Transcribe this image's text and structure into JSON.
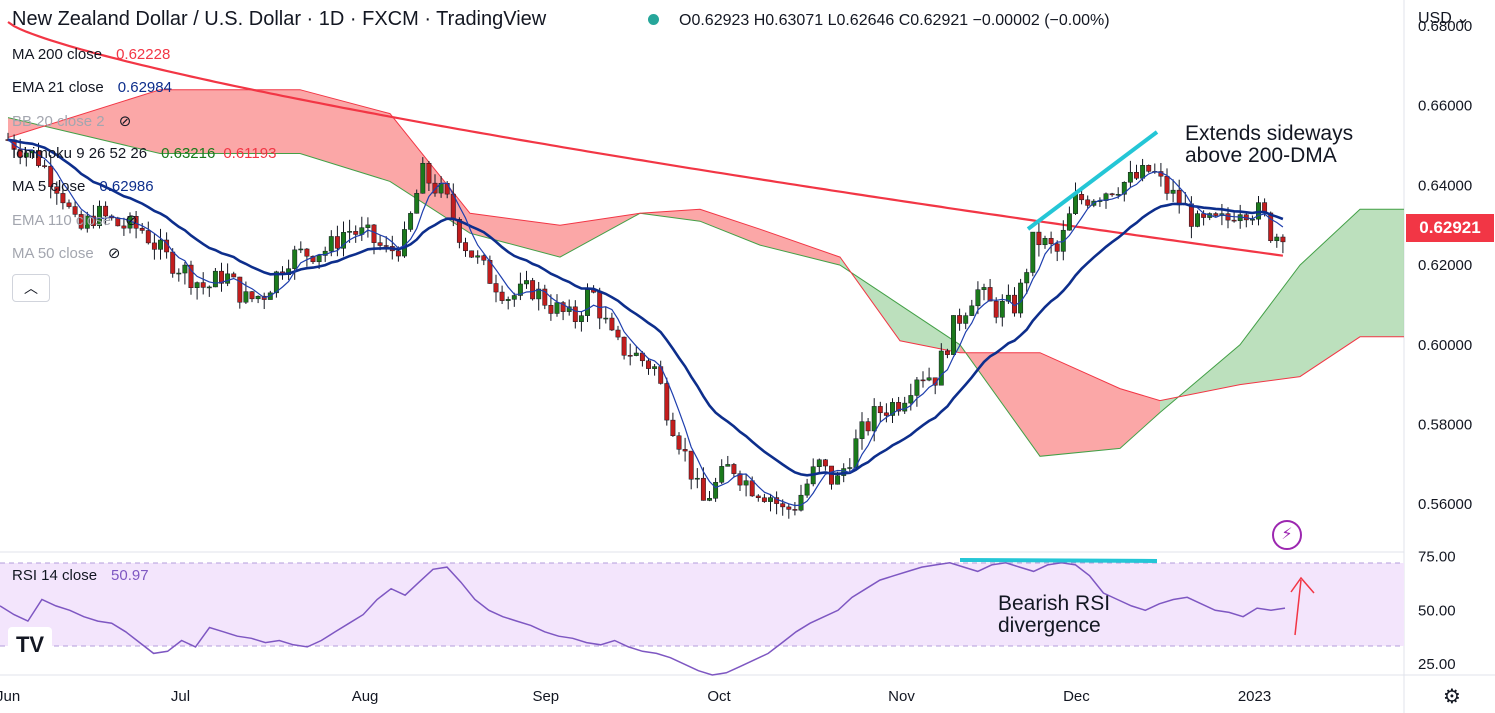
{
  "header": {
    "title": "New Zealand Dollar / U.S. Dollar · 1D · FXCM · TradingView",
    "ohlc": "O0.62923 H0.63071 L0.62646 C0.62921 −0.00002 (−0.00%)",
    "currency": "USD"
  },
  "legend": [
    {
      "label": "MA 200 close",
      "value": "0.62228",
      "color": "#f23645",
      "visible": true
    },
    {
      "label": "EMA 21 close",
      "value": "0.62984",
      "color": "#0d2e8c",
      "visible": true
    },
    {
      "label": "BB 20 close 2",
      "value": "",
      "color": "#a3a6af",
      "visible": false
    },
    {
      "label": "Ichimoku 9 26 52 26",
      "value": "0.63216",
      "value2": "0.61193",
      "color": "#1b7a1b",
      "color2": "#f23645",
      "visible": true
    },
    {
      "label": "MA 5 close",
      "value": "0.62986",
      "color": "#0d2e8c",
      "visible": true
    },
    {
      "label": "EMA 110 close",
      "value": "",
      "color": "#a3a6af",
      "visible": false
    },
    {
      "label": "MA 50 close",
      "value": "",
      "color": "#a3a6af",
      "visible": false
    }
  ],
  "rsi_legend": {
    "label": "RSI 14 close",
    "value": "50.97",
    "color": "#7e57c2"
  },
  "last_price": "0.62921",
  "annotations": {
    "top_note": [
      "Extends sideways",
      "above 200-DMA"
    ],
    "rsi_note": [
      "Bearish RSI",
      "divergence"
    ]
  },
  "icons": {
    "collapse": "chevron-up-icon",
    "logo": "tradingview-logo-icon",
    "alert": "lightning-icon",
    "settings": "gear-icon",
    "hidden": "eye-off-icon"
  },
  "chart_data": [
    {
      "type": "candlestick",
      "title": "New Zealand Dollar / U.S. Dollar · 1D · FXCM",
      "y_ticks": [
        "0.68000",
        "0.66000",
        "0.64000",
        "0.62000",
        "0.60000",
        "0.58000",
        "0.56000"
      ],
      "x_ticks": [
        "Jun",
        "Jul",
        "Aug",
        "Sep",
        "Oct",
        "Nov",
        "Dec",
        "2023"
      ],
      "ylim": [
        0.549,
        0.682
      ],
      "x_range": [
        "2022-06-01",
        "2023-01-06"
      ],
      "close_series": [
        [
          "2022-06-01",
          0.6515
        ],
        [
          "2022-06-06",
          0.647
        ],
        [
          "2022-06-10",
          0.639
        ],
        [
          "2022-06-13",
          0.628
        ],
        [
          "2022-06-16",
          0.633
        ],
        [
          "2022-06-20",
          0.63
        ],
        [
          "2022-06-24",
          0.629
        ],
        [
          "2022-06-28",
          0.622
        ],
        [
          "2022-07-01",
          0.619
        ],
        [
          "2022-07-05",
          0.614
        ],
        [
          "2022-07-08",
          0.618
        ],
        [
          "2022-07-12",
          0.611
        ],
        [
          "2022-07-15",
          0.613
        ],
        [
          "2022-07-19",
          0.622
        ],
        [
          "2022-07-22",
          0.623
        ],
        [
          "2022-07-26",
          0.624
        ],
        [
          "2022-07-29",
          0.629
        ],
        [
          "2022-08-02",
          0.627
        ],
        [
          "2022-08-05",
          0.623
        ],
        [
          "2022-08-08",
          0.626
        ],
        [
          "2022-08-11",
          0.643
        ],
        [
          "2022-08-15",
          0.637
        ],
        [
          "2022-08-18",
          0.626
        ],
        [
          "2022-08-22",
          0.618
        ],
        [
          "2022-08-26",
          0.612
        ],
        [
          "2022-08-30",
          0.614
        ],
        [
          "2022-09-02",
          0.61
        ],
        [
          "2022-09-06",
          0.606
        ],
        [
          "2022-09-09",
          0.614
        ],
        [
          "2022-09-13",
          0.6
        ],
        [
          "2022-09-16",
          0.598
        ],
        [
          "2022-09-20",
          0.594
        ],
        [
          "2022-09-22",
          0.584
        ],
        [
          "2022-09-26",
          0.569
        ],
        [
          "2022-09-28",
          0.56
        ],
        [
          "2022-10-03",
          0.57
        ],
        [
          "2022-10-06",
          0.565
        ],
        [
          "2022-10-10",
          0.562
        ],
        [
          "2022-10-12",
          0.558
        ],
        [
          "2022-10-14",
          0.56
        ],
        [
          "2022-10-18",
          0.57
        ],
        [
          "2022-10-21",
          0.565
        ],
        [
          "2022-10-25",
          0.577
        ],
        [
          "2022-10-28",
          0.583
        ],
        [
          "2022-11-01",
          0.586
        ],
        [
          "2022-11-04",
          0.593
        ],
        [
          "2022-11-07",
          0.592
        ],
        [
          "2022-11-10",
          0.604
        ],
        [
          "2022-11-14",
          0.614
        ],
        [
          "2022-11-17",
          0.609
        ],
        [
          "2022-11-21",
          0.61
        ],
        [
          "2022-11-24",
          0.627
        ],
        [
          "2022-11-28",
          0.623
        ],
        [
          "2022-12-01",
          0.636
        ],
        [
          "2022-12-05",
          0.638
        ],
        [
          "2022-12-08",
          0.64
        ],
        [
          "2022-12-12",
          0.642
        ],
        [
          "2022-12-14",
          0.644
        ],
        [
          "2022-12-16",
          0.64
        ],
        [
          "2022-12-20",
          0.634
        ],
        [
          "2022-12-22",
          0.63
        ],
        [
          "2022-12-27",
          0.631
        ],
        [
          "2022-12-29",
          0.635
        ],
        [
          "2023-01-02",
          0.633
        ],
        [
          "2023-01-04",
          0.627
        ],
        [
          "2023-01-06",
          0.6292
        ]
      ],
      "series": [
        {
          "name": "MA 200 close",
          "last": 0.62228
        },
        {
          "name": "EMA 21 close",
          "last": 0.62984
        },
        {
          "name": "Ichimoku 9 26 52 26",
          "last": [
            0.63216,
            0.61193
          ]
        },
        {
          "name": "MA 5 close",
          "last": 0.62986
        }
      ]
    },
    {
      "type": "line",
      "title": "RSI 14 close",
      "y_ticks": [
        "75.00",
        "50.00",
        "25.00"
      ],
      "ylim": [
        20,
        77
      ],
      "bands": [
        30,
        70
      ],
      "values": [
        52,
        48,
        45,
        55,
        52,
        50,
        47,
        45,
        44,
        40,
        35,
        30,
        31,
        36,
        33,
        42,
        40,
        38,
        37,
        35,
        36,
        34,
        33,
        36,
        40,
        44,
        48,
        55,
        60,
        57,
        63,
        69,
        70,
        63,
        55,
        50,
        47,
        45,
        43,
        40,
        38,
        37,
        35,
        34,
        36,
        33,
        31,
        30,
        28,
        25,
        22,
        20,
        21,
        24,
        27,
        30,
        35,
        40,
        44,
        47,
        50,
        56,
        60,
        64,
        66,
        68,
        70,
        71,
        72,
        70,
        68,
        71,
        72,
        70,
        68,
        71,
        72,
        71,
        66,
        58,
        55,
        52,
        50,
        53,
        55,
        56,
        53,
        50,
        49,
        47,
        51,
        50,
        51
      ],
      "divergence_line_level": 72
    }
  ]
}
